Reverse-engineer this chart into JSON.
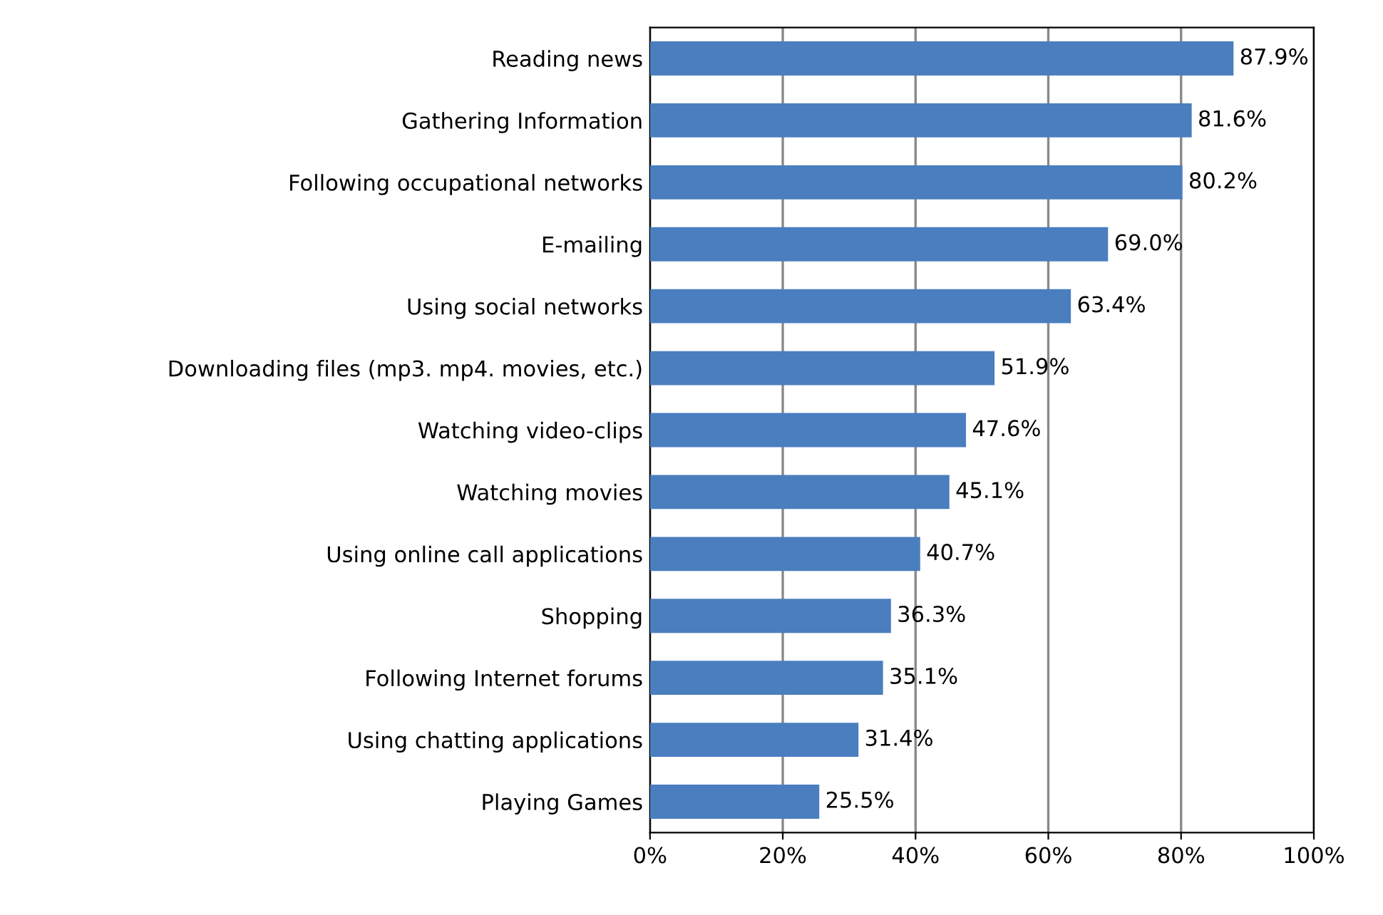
{
  "chart_data": {
    "type": "bar",
    "orientation": "horizontal",
    "categories": [
      "Reading news",
      "Gathering Information",
      "Following occupational networks",
      "E-mailing",
      "Using social networks",
      "Downloading files (mp3. mp4. movies, etc.)",
      "Watching video-clips",
      "Watching movies",
      "Using online call applications",
      "Shopping",
      "Following Internet forums",
      "Using chatting applications",
      "Playing Games"
    ],
    "values": [
      87.9,
      81.6,
      80.2,
      69.0,
      63.4,
      51.9,
      47.6,
      45.1,
      40.7,
      36.3,
      35.1,
      31.4,
      25.5
    ],
    "value_labels": [
      "87.9%",
      "81.6%",
      "80.2%",
      "69.0%",
      "63.4%",
      "51.9%",
      "47.6%",
      "45.1%",
      "40.7%",
      "36.3%",
      "35.1%",
      "31.4%",
      "25.5%"
    ],
    "color": "#4a7ebf",
    "xlim": [
      0,
      100
    ],
    "xticks": [
      {
        "value": 0,
        "label": "0%"
      },
      {
        "value": 20,
        "label": "20%"
      },
      {
        "value": 40,
        "label": "40%"
      },
      {
        "value": 60,
        "label": "60%"
      },
      {
        "value": 80,
        "label": "80%"
      },
      {
        "value": 100,
        "label": "100%"
      }
    ],
    "grid": "x",
    "legend": false
  }
}
